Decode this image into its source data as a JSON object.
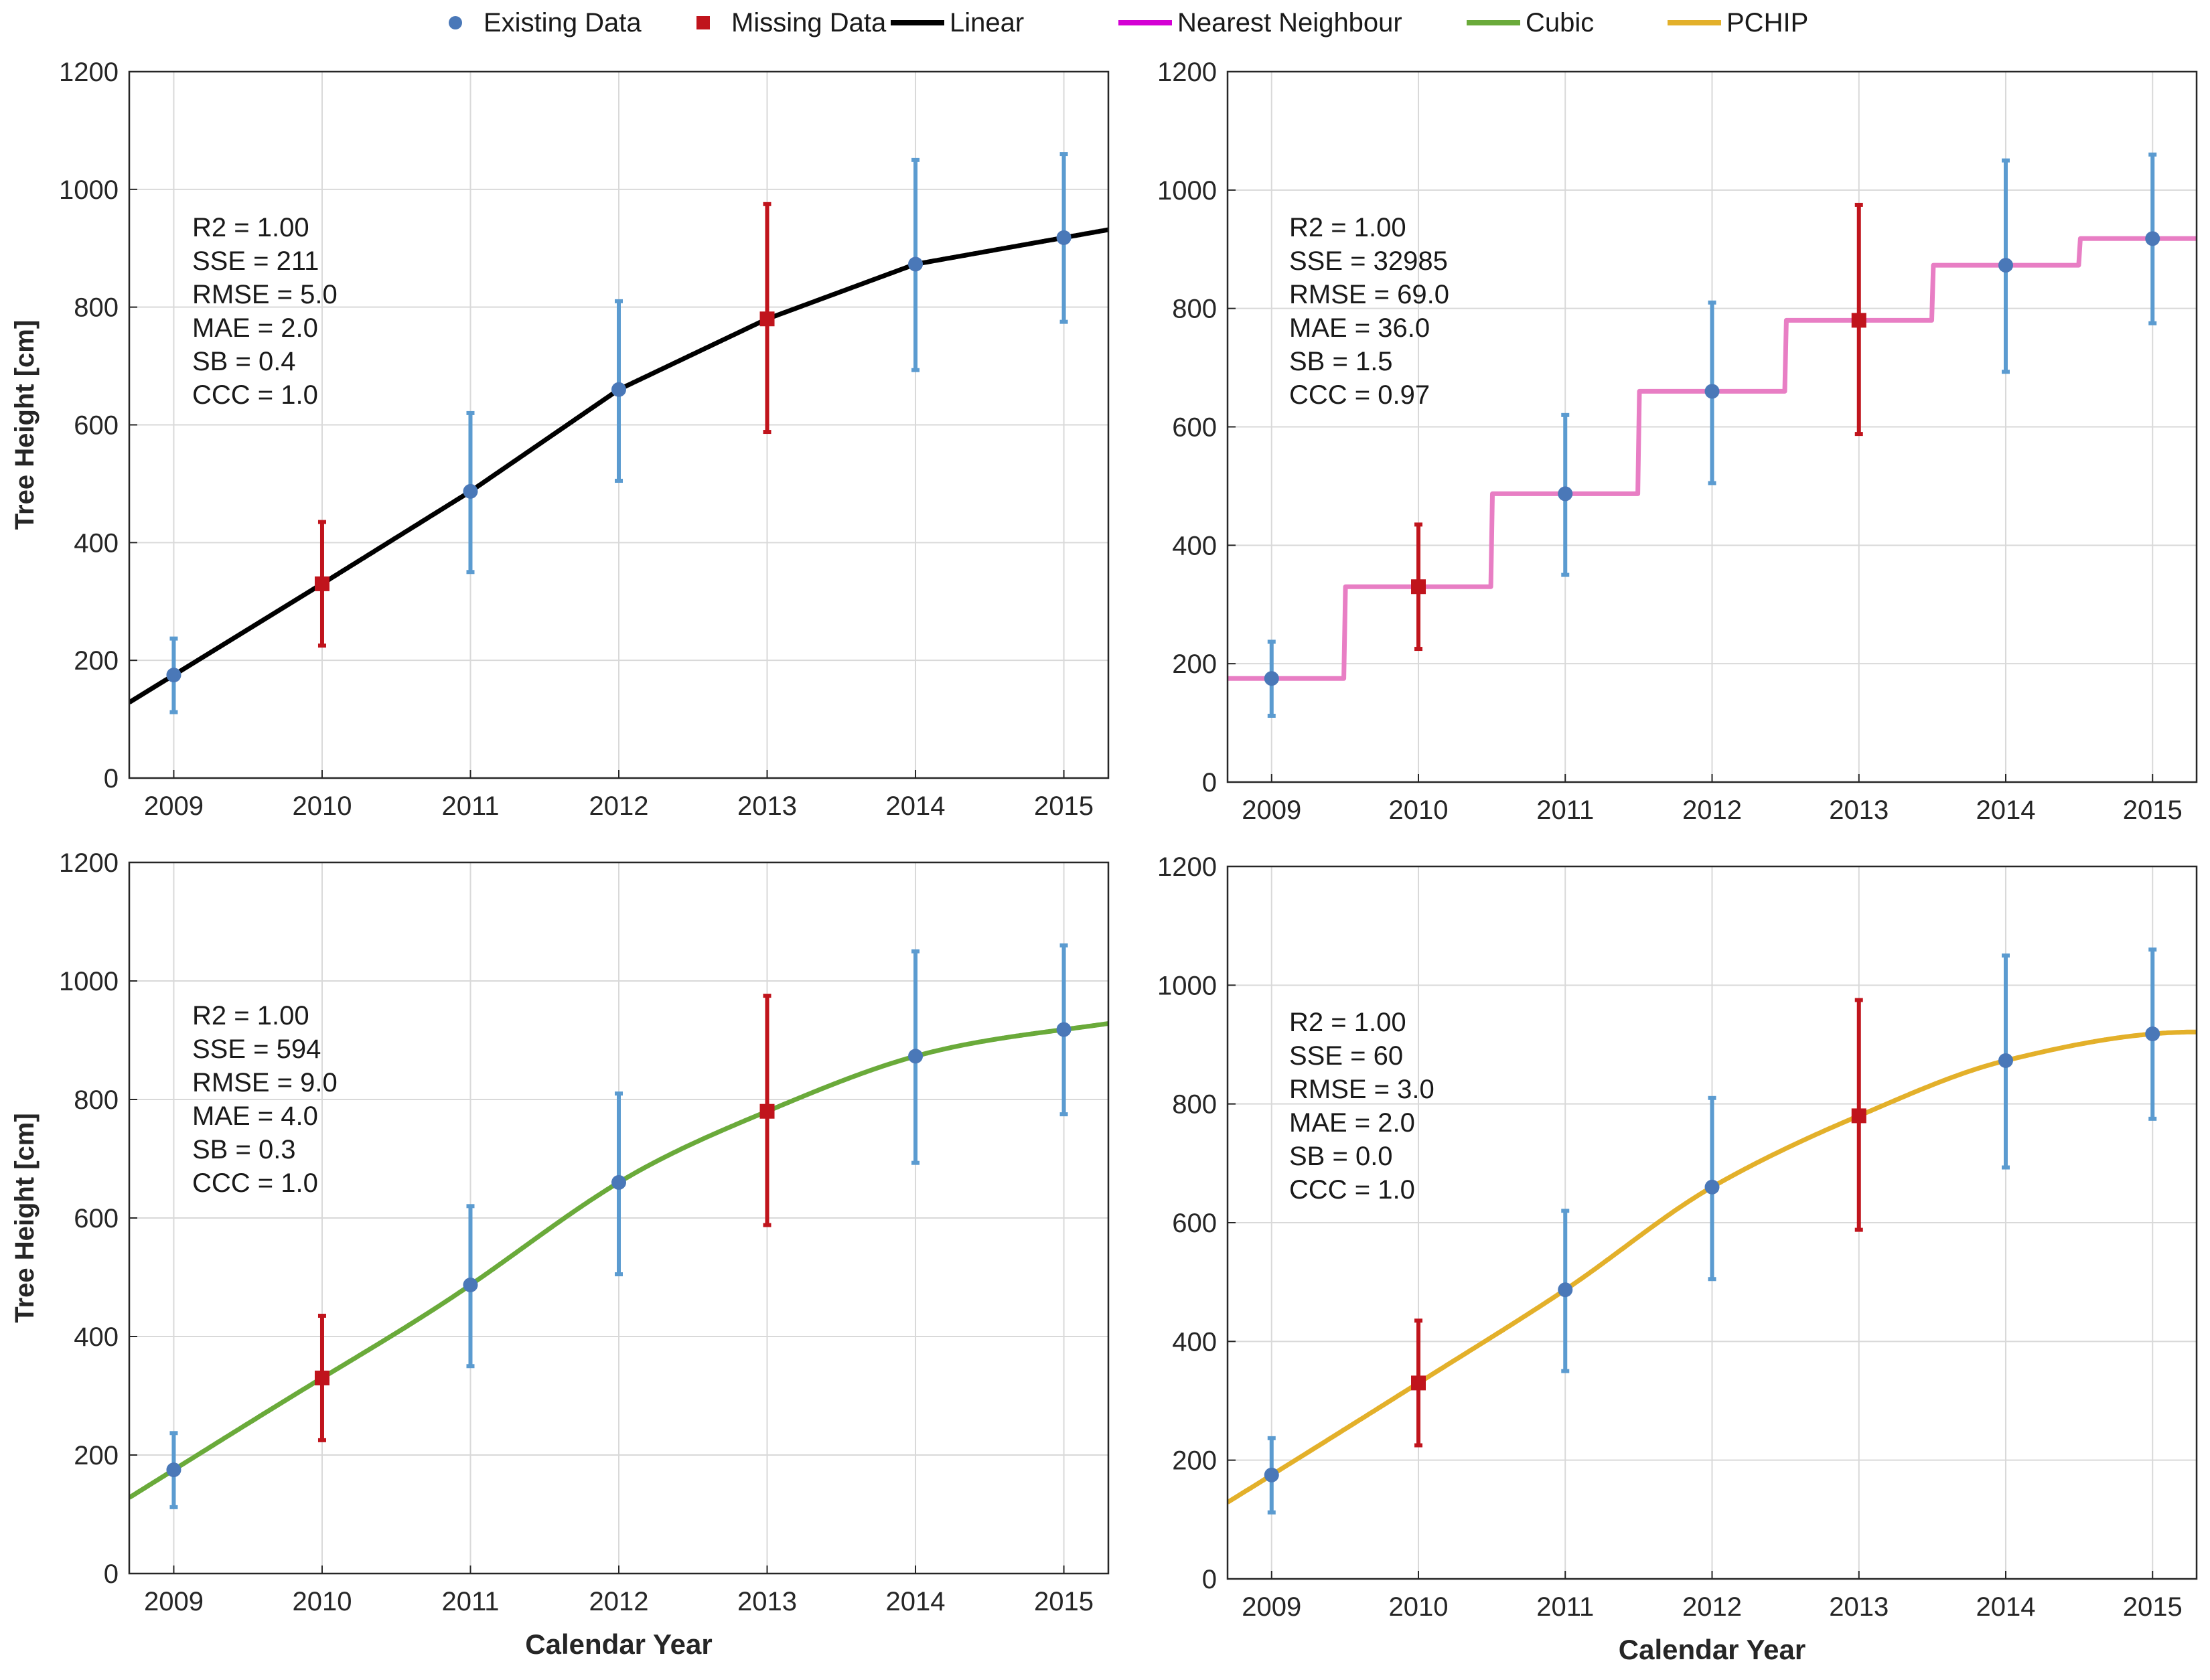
{
  "legend": {
    "items": [
      {
        "label": "Existing Data",
        "kind": "marker-circle",
        "color": "#4a78b8"
      },
      {
        "label": "Missing Data",
        "kind": "marker-square",
        "color": "#c0141c"
      },
      {
        "label": "Linear",
        "kind": "line",
        "color": "#000000"
      },
      {
        "label": "Nearest Neighbour",
        "kind": "line",
        "color": "#d400d4"
      },
      {
        "label": "Cubic",
        "kind": "line",
        "color": "#6aaa3a"
      },
      {
        "label": "PCHIP",
        "kind": "line",
        "color": "#e3b02a"
      }
    ]
  },
  "colors": {
    "existing": "#4a78b8",
    "existing_err": "#5b9bd0",
    "missing": "#c0141c",
    "grid": "#d9d9d9",
    "axis": "#262626"
  },
  "chart_data": [
    {
      "type": "line",
      "method": "Linear",
      "interp": "linear",
      "line_color": "#000000",
      "title": "",
      "xlabel": "",
      "ylabel": "Tree Height [cm]",
      "xlim": [
        2008.7,
        2015.3
      ],
      "ylim": [
        0,
        1200
      ],
      "xticks": [
        "2009",
        "2010",
        "2011",
        "2012",
        "2013",
        "2014",
        "2015"
      ],
      "yticks": [
        "0",
        "200",
        "400",
        "600",
        "800",
        "1000",
        "1200"
      ],
      "grid": true,
      "stats": [
        "R2 = 1.00",
        "SSE = 211",
        "RMSE = 5.0",
        "MAE = 2.0",
        "SB = 0.4",
        "CCC = 1.0"
      ],
      "existing": {
        "x": [
          2009,
          2011,
          2012,
          2014,
          2015
        ],
        "y": [
          175,
          487,
          660,
          873,
          918
        ],
        "err_low": [
          112,
          350,
          505,
          693,
          775
        ],
        "err_high": [
          237,
          620,
          810,
          1050,
          1060
        ]
      },
      "missing": {
        "x": [
          2010,
          2013
        ],
        "y": [
          330,
          780
        ],
        "err_low": [
          225,
          588
        ],
        "err_high": [
          435,
          975
        ]
      }
    },
    {
      "type": "line",
      "method": "Nearest Neighbour",
      "interp": "nearest",
      "line_color": "#e87ec4",
      "title": "",
      "xlabel": "",
      "ylabel": "",
      "xlim": [
        2008.7,
        2015.3
      ],
      "ylim": [
        0,
        1200
      ],
      "xticks": [
        "2009",
        "2010",
        "2011",
        "2012",
        "2013",
        "2014",
        "2015"
      ],
      "yticks": [
        "0",
        "200",
        "400",
        "600",
        "800",
        "1000",
        "1200"
      ],
      "grid": true,
      "stats": [
        "R2 = 1.00",
        "SSE = 32985",
        "RMSE = 69.0",
        "MAE = 36.0",
        "SB = 1.5",
        "CCC = 0.97"
      ],
      "existing": {
        "x": [
          2009,
          2011,
          2012,
          2014,
          2015
        ],
        "y": [
          175,
          487,
          660,
          873,
          918
        ],
        "err_low": [
          112,
          350,
          505,
          693,
          775
        ],
        "err_high": [
          237,
          620,
          810,
          1050,
          1060
        ]
      },
      "missing": {
        "x": [
          2010,
          2013
        ],
        "y": [
          330,
          780
        ],
        "err_low": [
          225,
          588
        ],
        "err_high": [
          435,
          975
        ]
      }
    },
    {
      "type": "line",
      "method": "Cubic",
      "interp": "cubic",
      "line_color": "#6aaa3a",
      "title": "",
      "xlabel": "Calendar Year",
      "ylabel": "Tree Height [cm]",
      "xlim": [
        2008.7,
        2015.3
      ],
      "ylim": [
        0,
        1200
      ],
      "xticks": [
        "2009",
        "2010",
        "2011",
        "2012",
        "2013",
        "2014",
        "2015"
      ],
      "yticks": [
        "0",
        "200",
        "400",
        "600",
        "800",
        "1000",
        "1200"
      ],
      "grid": true,
      "stats": [
        "R2 = 1.00",
        "SSE = 594",
        "RMSE = 9.0",
        "MAE = 4.0",
        "SB = 0.3",
        "CCC = 1.0"
      ],
      "existing": {
        "x": [
          2009,
          2011,
          2012,
          2014,
          2015
        ],
        "y": [
          175,
          487,
          660,
          873,
          918
        ],
        "err_low": [
          112,
          350,
          505,
          693,
          775
        ],
        "err_high": [
          237,
          620,
          810,
          1050,
          1060
        ]
      },
      "missing": {
        "x": [
          2010,
          2013
        ],
        "y": [
          330,
          780
        ],
        "err_low": [
          225,
          588
        ],
        "err_high": [
          435,
          975
        ]
      }
    },
    {
      "type": "line",
      "method": "PCHIP",
      "interp": "pchip",
      "line_color": "#e3b02a",
      "title": "",
      "xlabel": "Calendar Year",
      "ylabel": "",
      "xlim": [
        2008.7,
        2015.3
      ],
      "ylim": [
        0,
        1200
      ],
      "xticks": [
        "2009",
        "2010",
        "2011",
        "2012",
        "2013",
        "2014",
        "2015"
      ],
      "yticks": [
        "0",
        "200",
        "400",
        "600",
        "800",
        "1000",
        "1200"
      ],
      "grid": true,
      "stats": [
        "R2 = 1.00",
        "SSE = 60",
        "RMSE = 3.0",
        "MAE = 2.0",
        "SB = 0.0",
        "CCC = 1.0"
      ],
      "existing": {
        "x": [
          2009,
          2011,
          2012,
          2014,
          2015
        ],
        "y": [
          175,
          487,
          660,
          873,
          918
        ],
        "err_low": [
          112,
          350,
          505,
          693,
          775
        ],
        "err_high": [
          237,
          620,
          810,
          1050,
          1060
        ]
      },
      "missing": {
        "x": [
          2010,
          2013
        ],
        "y": [
          330,
          780
        ],
        "err_low": [
          225,
          588
        ],
        "err_high": [
          435,
          975
        ]
      }
    }
  ]
}
